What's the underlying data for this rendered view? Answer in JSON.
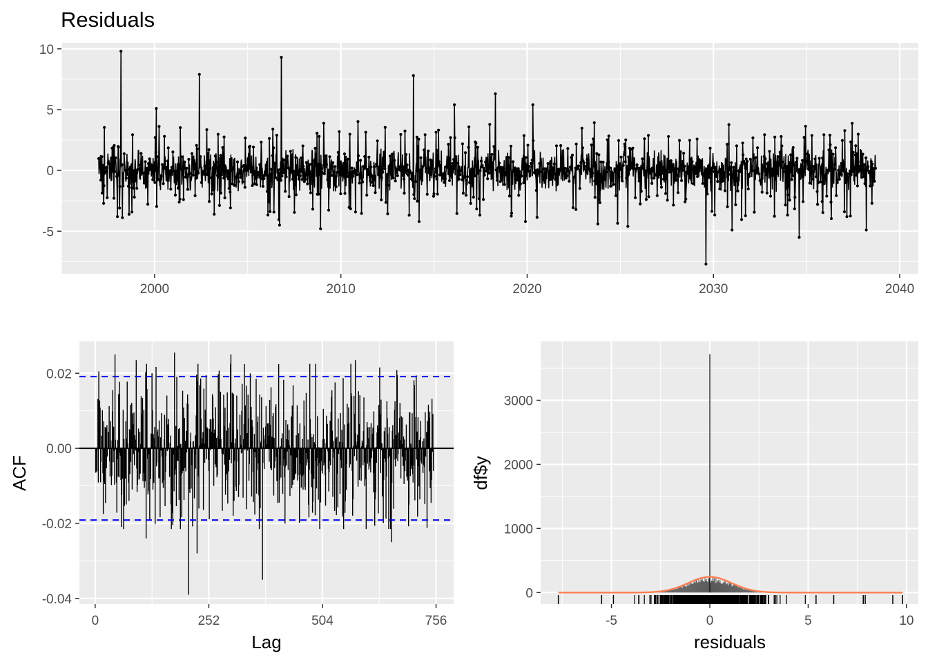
{
  "chart_data": [
    {
      "id": "residuals",
      "type": "line",
      "title": "Residuals",
      "xlabel": "",
      "ylabel": "",
      "xlim": [
        1995,
        2041
      ],
      "ylim": [
        -8.5,
        10.5
      ],
      "x_ticks": [
        "2000",
        "2010",
        "2020",
        "2030",
        "2040"
      ],
      "y_ticks": [
        "-5",
        "0",
        "5",
        "10"
      ],
      "x_range": [
        1997.0,
        2038.7
      ],
      "grid": true,
      "series_color": "#000000",
      "point_markers": true,
      "values_note_text": "",
      "notable_points": [
        {
          "x": 1998.2,
          "y": 9.8
        },
        {
          "x": 2006.8,
          "y": 9.3
        },
        {
          "x": 2002.4,
          "y": 7.9
        },
        {
          "x": 2013.9,
          "y": 7.8
        },
        {
          "x": 2018.3,
          "y": 6.3
        },
        {
          "x": 2020.3,
          "y": 5.4
        },
        {
          "x": 2000.1,
          "y": 5.1
        },
        {
          "x": 2016.1,
          "y": 5.4
        },
        {
          "x": 2029.6,
          "y": -7.7
        },
        {
          "x": 2034.6,
          "y": -5.5
        },
        {
          "x": 2038.2,
          "y": -4.9
        },
        {
          "x": 2031.0,
          "y": -4.9
        },
        {
          "x": 2008.9,
          "y": -4.8
        },
        {
          "x": 2025.4,
          "y": -4.6
        },
        {
          "x": 2006.7,
          "y": -4.5
        },
        {
          "x": 2023.8,
          "y": -4.4
        },
        {
          "x": 1998.0,
          "y": -3.8
        },
        {
          "x": 2014.2,
          "y": -4.2
        },
        {
          "x": 2019.9,
          "y": -4.2
        }
      ]
    },
    {
      "id": "acf",
      "type": "bar",
      "title": "",
      "xlabel": "Lag",
      "ylabel": "ACF",
      "xlim": [
        -35,
        795
      ],
      "ylim": [
        -0.0415,
        0.0285
      ],
      "x_ticks": [
        "0",
        "252",
        "504",
        "756"
      ],
      "y_ticks": [
        "-0.04",
        "-0.02",
        "0.00",
        "0.02"
      ],
      "max_lag": 750,
      "confidence_band": 0.0191,
      "band_color": "#0000ff",
      "notable_lags": [
        {
          "lag": 207,
          "value": -0.039
        },
        {
          "lag": 371,
          "value": -0.035
        },
        {
          "lag": 226,
          "value": -0.028
        },
        {
          "lag": 44,
          "value": 0.025
        },
        {
          "lag": 176,
          "value": 0.0255
        },
        {
          "lag": 301,
          "value": 0.025
        },
        {
          "lag": 91,
          "value": 0.0235
        },
        {
          "lag": 577,
          "value": 0.0235
        },
        {
          "lag": 657,
          "value": -0.025
        },
        {
          "lag": 113,
          "value": -0.024
        },
        {
          "lag": 4,
          "value": -0.006
        }
      ]
    },
    {
      "id": "histogram",
      "type": "bar",
      "title": "",
      "xlabel": "residuals",
      "ylabel": "df$y",
      "xlim": [
        -8.6,
        10.6
      ],
      "ylim": [
        -180,
        3920
      ],
      "x_ticks": [
        "-5",
        "0",
        "5",
        "10"
      ],
      "y_ticks": [
        "0",
        "1000",
        "2000",
        "3000"
      ],
      "bar_color": "#595959",
      "density_color": "#ff7f50",
      "spike": {
        "x": 0,
        "count": 3720
      },
      "density_peak": 245,
      "density_sd": 1.1,
      "rug_range": [
        -7.7,
        9.8
      ],
      "rug_outliers": [
        -7.7,
        -5.5,
        -4.9,
        5.4,
        6.3,
        7.8,
        7.9,
        9.3,
        9.8
      ]
    }
  ]
}
